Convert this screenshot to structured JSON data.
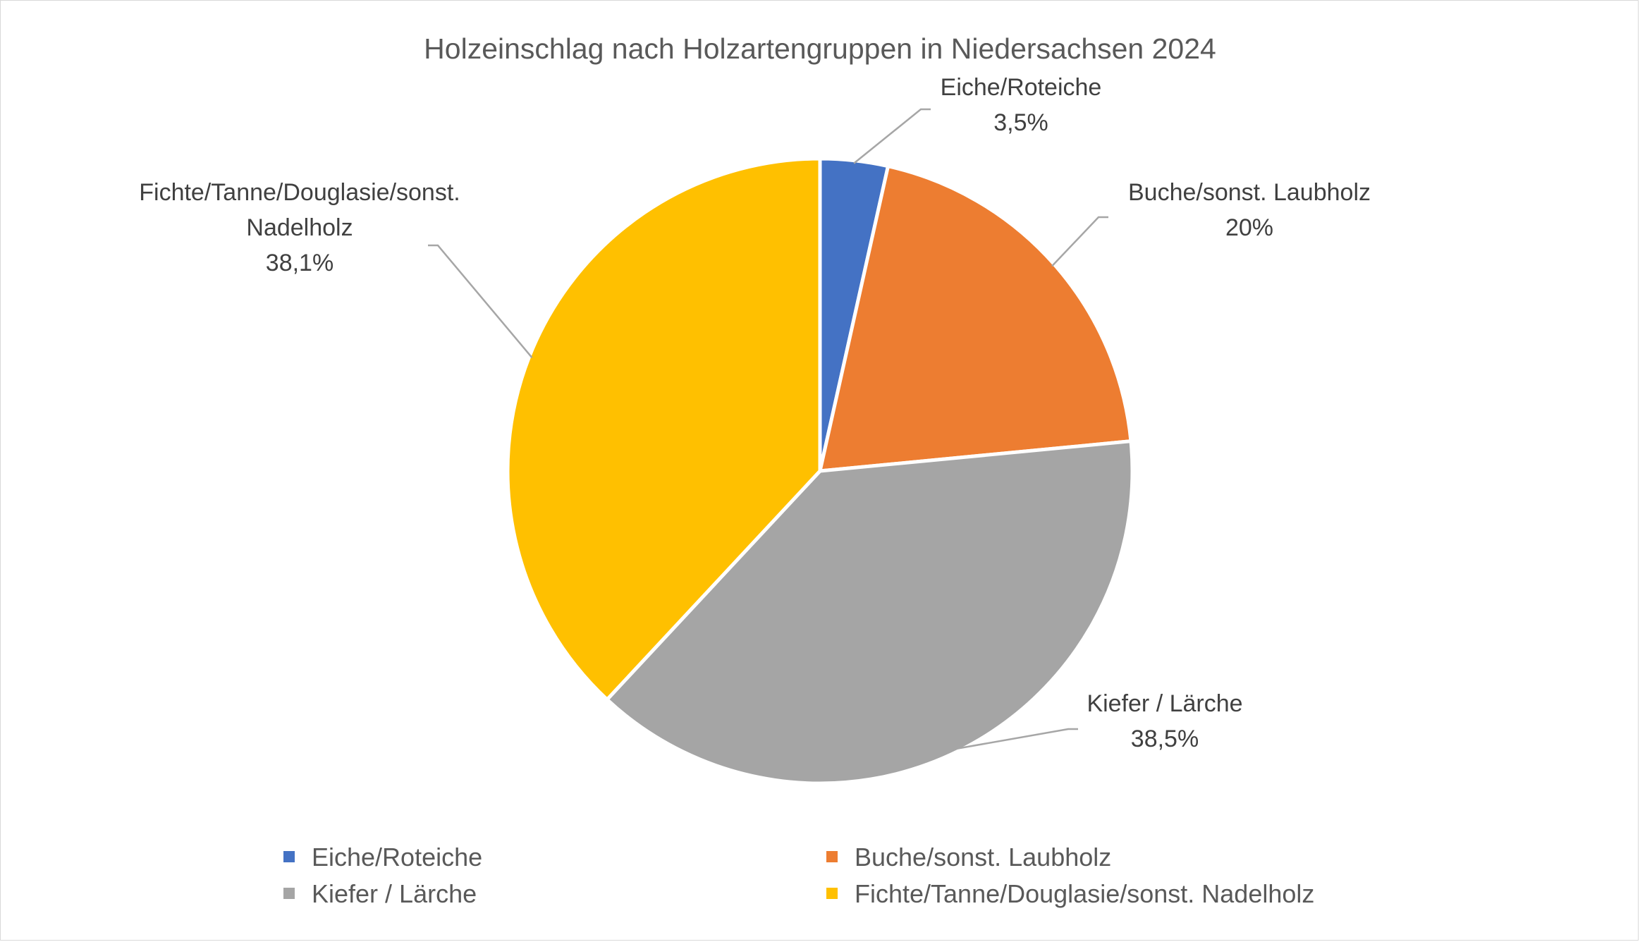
{
  "chart_data": {
    "type": "pie",
    "title": "Holzeinschlag nach Holzartengruppen in Niedersachsen 2024",
    "categories": [
      "Eiche/Roteiche",
      "Buche/sonst. Laubholz",
      "Kiefer / Lärche",
      "Fichte/Tanne/Douglasie/sonst. Nadelholz"
    ],
    "values": [
      3.5,
      20,
      38.5,
      38.1
    ],
    "value_labels": [
      "3,5%",
      "20%",
      "38,5%",
      "38,1%"
    ],
    "data_label_lines": [
      [
        "Eiche/Roteiche",
        "3,5%"
      ],
      [
        "Buche/sonst. Laubholz",
        "20%"
      ],
      [
        "Kiefer / Lärche",
        "38,5%"
      ],
      [
        "Fichte/Tanne/Douglasie/sonst.",
        "Nadelholz",
        "38,1%"
      ]
    ],
    "colors": [
      "#4472C4",
      "#ED7D31",
      "#A5A5A5",
      "#FFC000"
    ],
    "legend_position": "bottom"
  }
}
